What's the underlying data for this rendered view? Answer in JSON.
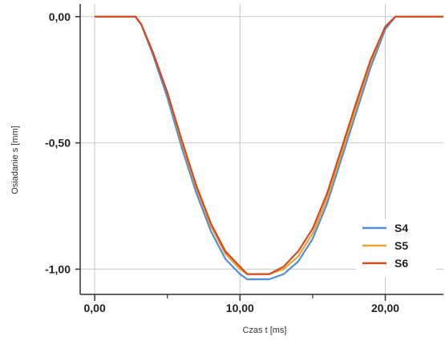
{
  "chart_data": {
    "type": "line",
    "xlabel": "Czas t [ms]",
    "ylabel": "Osiadanie s [mm]",
    "xlim": [
      -1.0,
      24.0
    ],
    "ylim": [
      -1.1,
      0.05
    ],
    "x_ticks": [
      0,
      10,
      20
    ],
    "x_tick_labels": [
      "0,00",
      "10,00",
      "20,00"
    ],
    "y_ticks": [
      0,
      -0.5,
      -1.0
    ],
    "y_tick_labels": [
      "0,00",
      "-0,50",
      "-1,00"
    ],
    "minor_x_ticks": [
      5,
      15
    ],
    "grid": true,
    "legend_position": "bottom-right",
    "series": [
      {
        "name": "S4",
        "color": "#4f8fd6",
        "x": [
          0,
          2.8,
          3.2,
          4.0,
          5.0,
          6.0,
          7.0,
          8.0,
          9.0,
          10.0,
          10.5,
          11.0,
          12.0,
          13.0,
          14.0,
          15.0,
          16.0,
          17.0,
          18.0,
          19.0,
          20.0,
          20.7,
          21.0,
          24.0
        ],
        "y": [
          0,
          0,
          -0.03,
          -0.15,
          -0.32,
          -0.52,
          -0.7,
          -0.85,
          -0.96,
          -1.02,
          -1.04,
          -1.04,
          -1.04,
          -1.02,
          -0.97,
          -0.88,
          -0.74,
          -0.56,
          -0.38,
          -0.2,
          -0.05,
          0.0,
          0,
          0
        ]
      },
      {
        "name": "S5",
        "color": "#f0a030",
        "x": [
          0,
          2.8,
          3.2,
          4.0,
          5.0,
          6.0,
          7.0,
          8.0,
          9.0,
          10.0,
          10.5,
          11.0,
          12.0,
          13.0,
          14.0,
          15.0,
          16.0,
          17.0,
          18.0,
          19.0,
          20.0,
          20.7,
          21.0,
          24.0
        ],
        "y": [
          0,
          0,
          -0.03,
          -0.14,
          -0.3,
          -0.5,
          -0.68,
          -0.83,
          -0.94,
          -1.0,
          -1.02,
          -1.02,
          -1.02,
          -1.0,
          -0.95,
          -0.86,
          -0.72,
          -0.54,
          -0.36,
          -0.18,
          -0.04,
          0.0,
          0,
          0
        ]
      },
      {
        "name": "S6",
        "color": "#d24a20",
        "x": [
          0,
          2.8,
          3.2,
          4.0,
          5.0,
          6.0,
          7.0,
          8.0,
          9.0,
          10.0,
          10.5,
          11.0,
          12.0,
          13.0,
          14.0,
          15.0,
          16.0,
          17.0,
          18.0,
          19.0,
          20.0,
          20.7,
          21.0,
          24.0
        ],
        "y": [
          0,
          0,
          -0.03,
          -0.14,
          -0.3,
          -0.49,
          -0.67,
          -0.82,
          -0.93,
          -0.99,
          -1.02,
          -1.02,
          -1.02,
          -0.99,
          -0.93,
          -0.84,
          -0.7,
          -0.52,
          -0.34,
          -0.17,
          -0.04,
          0.0,
          0,
          0
        ]
      }
    ]
  }
}
